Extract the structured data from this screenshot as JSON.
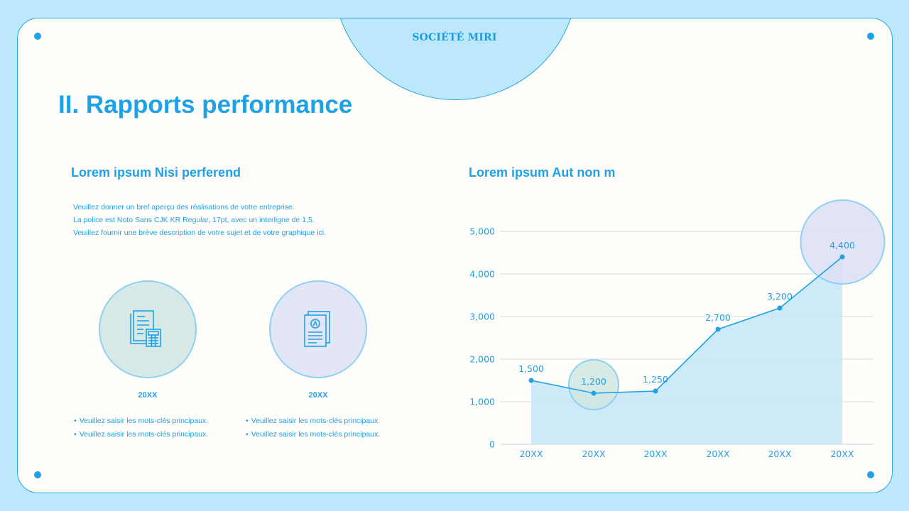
{
  "company": "SOCIÉTÉ MIRI",
  "page_title": "II. Rapports performance",
  "left_section": {
    "title": "Lorem ipsum Nisi perferend",
    "description": [
      "Veuillez donner un bref aperçu des réalisations de votre entreprise.",
      "La police est Noto Sans CJK KR Regular, 17pt, avec un interligne de 1,5.",
      "Veuillez fournir une brève description de votre sujet et de votre graphique ici."
    ],
    "features": [
      {
        "icon": "document-calculator-icon",
        "circle_color": "#d7e9e7",
        "year": "20XX",
        "bullets": [
          "Veuillez saisir les mots-clés principaux.",
          "Veuillez saisir les mots-clés principaux."
        ]
      },
      {
        "icon": "certificate-document-icon",
        "circle_color": "#e2e6f6",
        "year": "20XX",
        "bullets": [
          "Veuillez saisir les mots-clés principaux.",
          "Veuillez saisir les mots-clés principaux."
        ]
      }
    ]
  },
  "right_section": {
    "title": "Lorem ipsum Aut non m"
  },
  "colors": {
    "accent": "#1fa1e6",
    "background": "#bde8fb",
    "card": "#fefdfa",
    "area_fill": "#c6e5f7",
    "highlight_green": "#cfe6e2",
    "highlight_purple": "#dcdff4"
  },
  "chart_data": {
    "type": "area",
    "categories": [
      "20XX",
      "20XX",
      "20XX",
      "20XX",
      "20XX",
      "20XX"
    ],
    "values": [
      1500,
      1200,
      1250,
      2700,
      3200,
      4400
    ],
    "data_labels": [
      "1,500",
      "1,200",
      "1,250",
      "2,700",
      "3,200",
      "4,400"
    ],
    "ylim": [
      0,
      5000
    ],
    "yticks": [
      0,
      1000,
      2000,
      3000,
      4000,
      5000
    ],
    "ytick_labels": [
      "0",
      "1,000",
      "2,000",
      "3,000",
      "4,000",
      "5,000"
    ],
    "grid": true,
    "highlighted_points": [
      {
        "index": 1,
        "color": "highlight_green"
      },
      {
        "index": 5,
        "color": "highlight_purple"
      }
    ]
  }
}
